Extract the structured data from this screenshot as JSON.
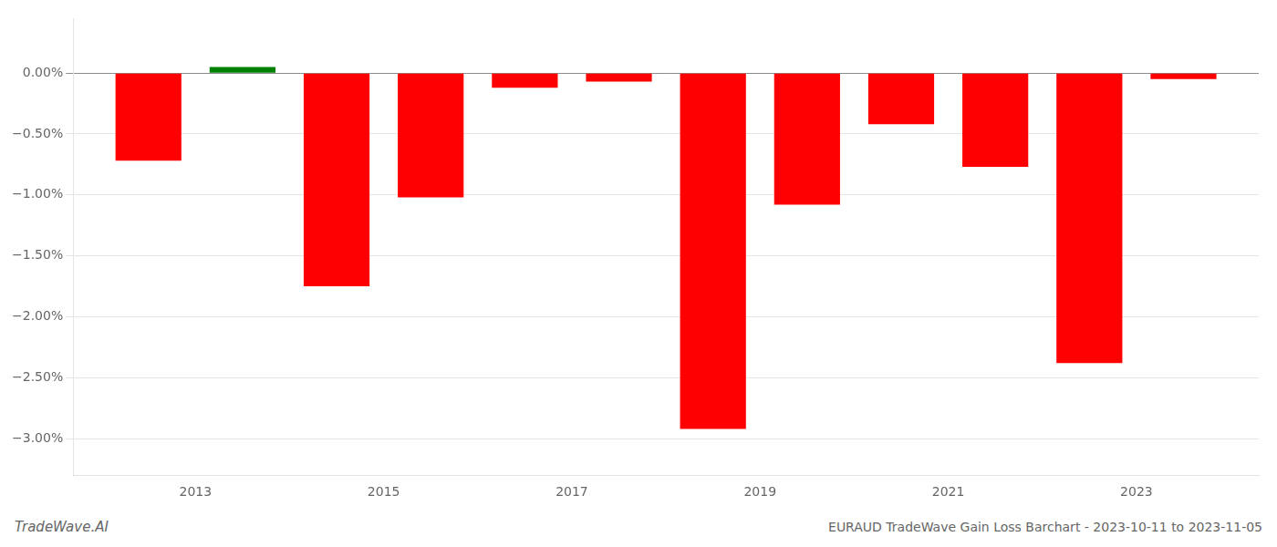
{
  "chart_data": {
    "type": "bar",
    "x": [
      2012.5,
      2013.5,
      2014.5,
      2015.5,
      2016.5,
      2017.5,
      2018.5,
      2019.5,
      2020.5,
      2021.5,
      2022.5,
      2023.5
    ],
    "values": [
      -0.0072,
      0.0005,
      -0.0175,
      -0.0102,
      -0.0012,
      -0.0007,
      -0.0292,
      -0.0108,
      -0.0042,
      -0.0077,
      -0.0238,
      -0.0005
    ],
    "colors": [
      "#ff0000",
      "#008000",
      "#ff0000",
      "#ff0000",
      "#ff0000",
      "#ff0000",
      "#ff0000",
      "#ff0000",
      "#ff0000",
      "#ff0000",
      "#ff0000",
      "#ff0000"
    ],
    "xlim": [
      2011.7,
      2024.3
    ],
    "xticks": [
      2013,
      2015,
      2017,
      2019,
      2021,
      2023
    ],
    "ylim": [
      -0.033,
      0.0045
    ],
    "yticks": [
      {
        "value": 0.0,
        "label": "0.00%"
      },
      {
        "value": -0.005,
        "label": "−0.50%"
      },
      {
        "value": -0.01,
        "label": "−1.00%"
      },
      {
        "value": -0.015,
        "label": "−1.50%"
      },
      {
        "value": -0.02,
        "label": "−2.00%"
      },
      {
        "value": -0.025,
        "label": "−2.50%"
      },
      {
        "value": -0.03,
        "label": "−3.00%"
      }
    ],
    "grid": true,
    "annotations": [
      "TradeWave.AI",
      "EURAUD TradeWave Gain Loss Barchart - 2023-10-11 to 2023-11-05"
    ]
  }
}
